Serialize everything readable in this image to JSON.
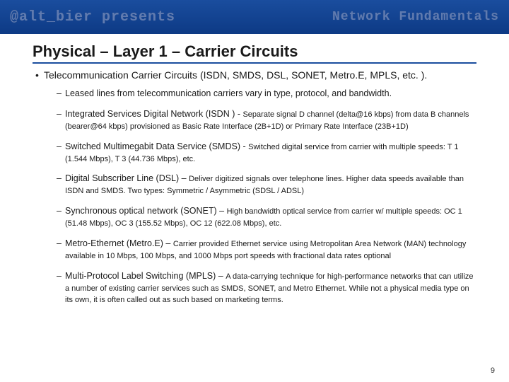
{
  "header": {
    "left": "@alt_bier presents",
    "right": "Network Fundamentals",
    "bg_gradient_top": "#1a4d9e",
    "bg_gradient_bottom": "#0d3a85",
    "text_color": "#5a7ab8"
  },
  "title": "Physical – Layer 1 – Carrier Circuits",
  "title_underline_color": "#1a4d9e",
  "bullet_main": "Telecommunication Carrier Circuits (ISDN, SMDS, DSL, SONET, Metro.E, MPLS, etc. ).",
  "items": [
    {
      "lead": "Leased lines from telecommunication carriers vary in type, protocol, and bandwidth.",
      "detail": ""
    },
    {
      "lead": "Integrated Services Digital Network (ISDN ) - ",
      "detail": "Separate signal D channel (delta@16 kbps) from data B channels (bearer@64 kbps) provisioned as Basic Rate Interface (2B+1D) or Primary Rate Interface (23B+1D)"
    },
    {
      "lead": "Switched Multimegabit Data Service (SMDS) - ",
      "detail": "Switched digital service from carrier with multiple speeds: T 1 (1.544 Mbps), T 3 (44.736 Mbps), etc."
    },
    {
      "lead": "Digital Subscriber Line (DSL) – ",
      "detail": "Deliver digitized signals over telephone lines. Higher data speeds available than ISDN and SMDS.  Two types: Symmetric / Asymmetric (SDSL / ADSL)"
    },
    {
      "lead": "Synchronous optical network (SONET) – ",
      "detail": "High bandwidth optical service from carrier w/ multiple speeds: OC 1 (51.48 Mbps), OC 3 (155.52 Mbps), OC 12 (622.08 Mbps), etc."
    },
    {
      "lead": "Metro-Ethernet (Metro.E) – ",
      "detail": "Carrier provided Ethernet service using Metropolitan Area Network (MAN) technology available in 10 Mbps, 100 Mbps, and 1000 Mbps port speeds with fractional data rates optional"
    },
    {
      "lead": "Multi-Protocol Label Switching (MPLS) – ",
      "detail": "A data-carrying technique for high-performance networks that can utilize a number of existing carrier services such as SMDS, SONET, and Metro Ethernet.  While not a physical media type on its own, it is often called out as such based on marketing terms."
    }
  ],
  "page_number": "9",
  "colors": {
    "background": "#ffffff",
    "text": "#1a1a1a"
  },
  "fonts": {
    "title_size": 22,
    "level1_size": 14,
    "level2_size": 12.5,
    "detail_size": 11
  }
}
